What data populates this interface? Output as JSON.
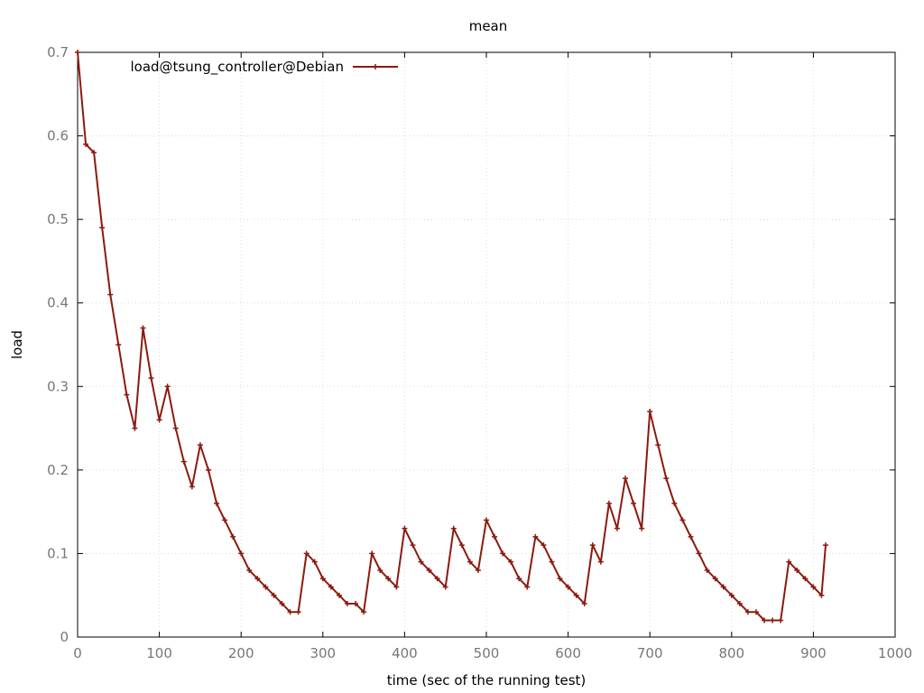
{
  "chart_data": {
    "type": "line",
    "title": "mean",
    "xlabel": "time (sec of the running test)",
    "ylabel": "load",
    "xlim": [
      0,
      1000
    ],
    "ylim": [
      0,
      0.7
    ],
    "x_ticks": [
      "0",
      "100",
      "200",
      "300",
      "400",
      "500",
      "600",
      "700",
      "800",
      "900",
      "1000"
    ],
    "y_ticks": [
      "0",
      "0.1",
      "0.2",
      "0.3",
      "0.4",
      "0.5",
      "0.6",
      "0.7"
    ],
    "grid": true,
    "legend_position": "top-left",
    "series": [
      {
        "name": "load@tsung_controller@Debian",
        "color": "#8b1a0e",
        "marker": "plus",
        "x": [
          0,
          10,
          20,
          30,
          40,
          50,
          60,
          70,
          80,
          90,
          100,
          110,
          120,
          130,
          140,
          150,
          160,
          170,
          180,
          190,
          200,
          210,
          220,
          230,
          240,
          250,
          260,
          270,
          280,
          290,
          300,
          310,
          320,
          330,
          340,
          350,
          360,
          370,
          380,
          390,
          400,
          410,
          420,
          430,
          440,
          450,
          460,
          470,
          480,
          490,
          500,
          510,
          520,
          530,
          540,
          550,
          560,
          570,
          580,
          590,
          600,
          610,
          620,
          630,
          640,
          650,
          660,
          670,
          680,
          690,
          700,
          710,
          720,
          730,
          740,
          750,
          760,
          770,
          780,
          790,
          800,
          810,
          820,
          830,
          840,
          850,
          860,
          870,
          880,
          890,
          900,
          910,
          915
        ],
        "y": [
          0.7,
          0.59,
          0.58,
          0.49,
          0.41,
          0.35,
          0.29,
          0.25,
          0.37,
          0.31,
          0.26,
          0.3,
          0.25,
          0.21,
          0.18,
          0.23,
          0.2,
          0.16,
          0.14,
          0.12,
          0.1,
          0.08,
          0.07,
          0.06,
          0.05,
          0.04,
          0.03,
          0.03,
          0.1,
          0.09,
          0.07,
          0.06,
          0.05,
          0.04,
          0.04,
          0.03,
          0.1,
          0.08,
          0.07,
          0.06,
          0.13,
          0.11,
          0.09,
          0.08,
          0.07,
          0.06,
          0.13,
          0.11,
          0.09,
          0.08,
          0.14,
          0.12,
          0.1,
          0.09,
          0.07,
          0.06,
          0.12,
          0.11,
          0.09,
          0.07,
          0.06,
          0.05,
          0.04,
          0.11,
          0.09,
          0.16,
          0.13,
          0.19,
          0.16,
          0.13,
          0.27,
          0.23,
          0.19,
          0.16,
          0.14,
          0.12,
          0.1,
          0.08,
          0.07,
          0.06,
          0.05,
          0.04,
          0.03,
          0.03,
          0.02,
          0.02,
          0.02,
          0.09,
          0.08,
          0.07,
          0.06,
          0.05,
          0.11
        ]
      }
    ]
  }
}
